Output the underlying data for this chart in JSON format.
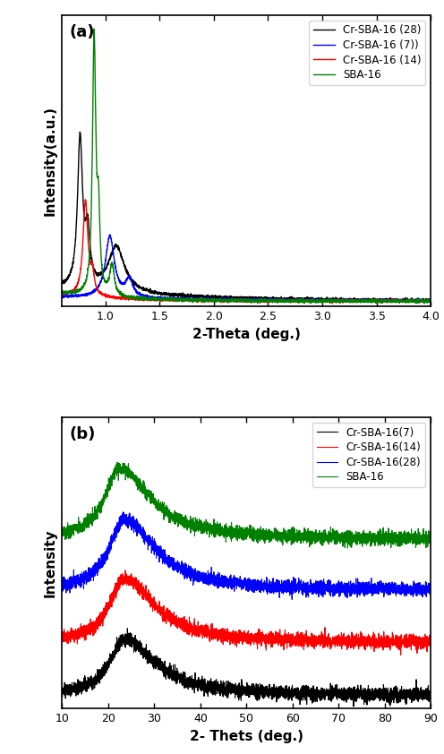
{
  "panel_a": {
    "title": "(a)",
    "xlabel": "2-Theta (deg.)",
    "ylabel": "Intensity(a.u.)",
    "xlim": [
      0.6,
      4.0
    ],
    "ylim": [
      -0.02,
      1.05
    ],
    "legend": [
      "Cr-SBA-16 (28)",
      "Cr-SBA-16 (7))",
      "Cr-SBA-16 (14)",
      "SBA-16"
    ],
    "colors": [
      "black",
      "blue",
      "red",
      "green"
    ],
    "xticks": [
      1.0,
      1.5,
      2.0,
      2.5,
      3.0,
      3.5,
      4.0
    ]
  },
  "panel_b": {
    "title": "(b)",
    "xlabel": "2- Thets (deg.)",
    "ylabel": "Intensity",
    "xlim": [
      10,
      90
    ],
    "legend": [
      "SBA-16",
      "Cr-SBA-16(28)",
      "Cr-SBA-16(14)",
      "Cr-SBA-16(7)"
    ],
    "colors": [
      "green",
      "blue",
      "red",
      "black"
    ],
    "xticks": [
      10,
      20,
      30,
      40,
      50,
      60,
      70,
      80,
      90
    ]
  }
}
